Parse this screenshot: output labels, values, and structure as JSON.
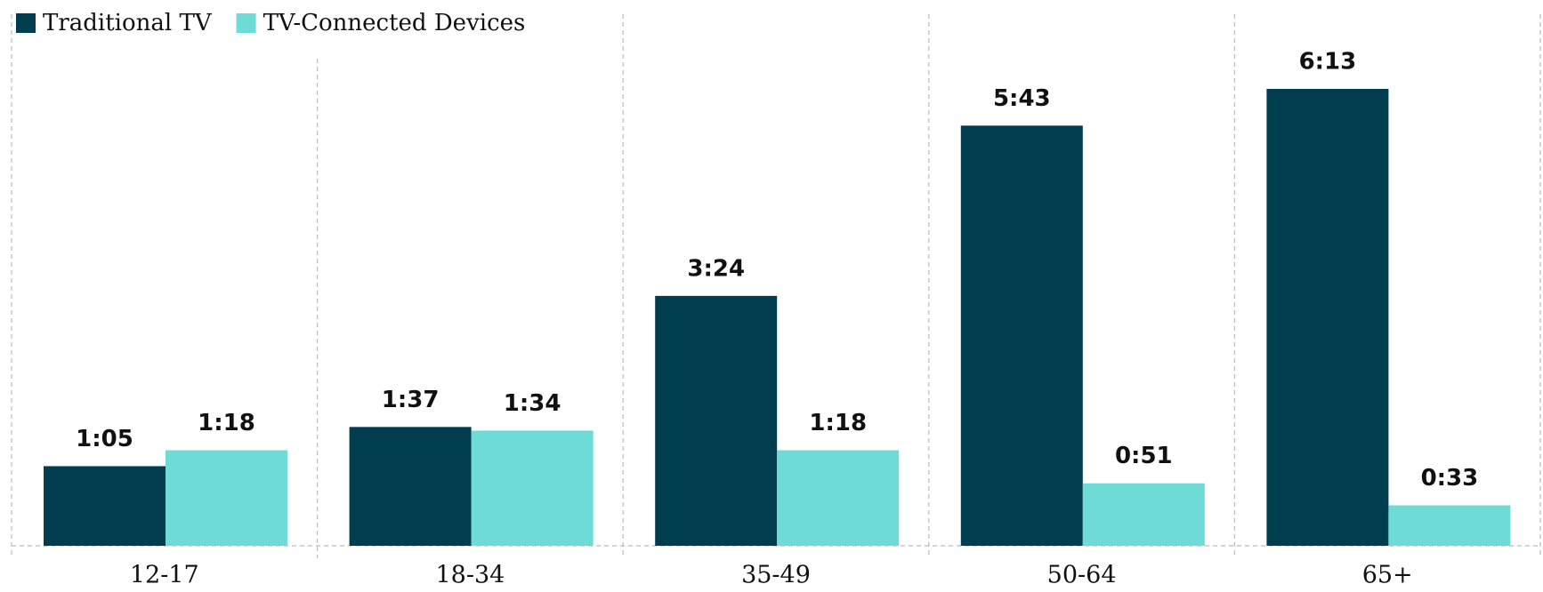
{
  "chart_data": {
    "type": "bar",
    "categories": [
      "12-17",
      "18-34",
      "35-49",
      "50-64",
      "65+"
    ],
    "series": [
      {
        "name": "Traditional TV",
        "color": "#003d4f",
        "values": [
          65,
          97,
          204,
          343,
          373
        ],
        "value_labels": [
          "1:05",
          "1:37",
          "3:24",
          "5:43",
          "6:13"
        ]
      },
      {
        "name": "TV-Connected Devices",
        "color": "#6fdbd6",
        "values": [
          78,
          94,
          78,
          51,
          33
        ],
        "value_labels": [
          "1:18",
          "1:34",
          "1:18",
          "0:51",
          "0:33"
        ]
      }
    ],
    "legend": "top-left"
  }
}
